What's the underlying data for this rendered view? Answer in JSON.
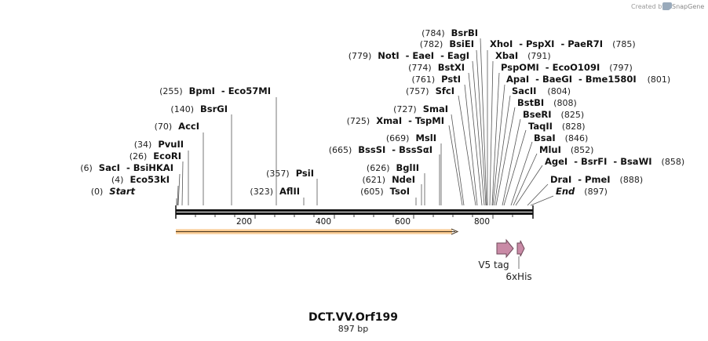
{
  "credit": {
    "text": "Created by",
    "brand": "SnapGene"
  },
  "title": "DCT.VV.Orf199",
  "length_label": "897 bp",
  "axis": {
    "ticks": [
      "200",
      "400",
      "600",
      "800"
    ]
  },
  "sites": [
    {
      "pos": "(0)",
      "name": "Start"
    },
    {
      "pos": "(4)",
      "name": "Eco53kI"
    },
    {
      "pos": "(6)",
      "name": "SacI  - BsiHKAI"
    },
    {
      "pos": "(26)",
      "name": "EcoRI"
    },
    {
      "pos": "(34)",
      "name": "PvuII"
    },
    {
      "pos": "(70)",
      "name": "AccI"
    },
    {
      "pos": "(140)",
      "name": "BsrGI"
    },
    {
      "pos": "(255)",
      "name": "BpmI  - Eco57MI"
    },
    {
      "pos": "(323)",
      "name": "AflII"
    },
    {
      "pos": "(357)",
      "name": "PsiI"
    },
    {
      "pos": "(605)",
      "name": "TsoI"
    },
    {
      "pos": "(621)",
      "name": "NdeI"
    },
    {
      "pos": "(626)",
      "name": "BglII"
    },
    {
      "pos": "(665)",
      "name": "BssSI  - BssSαI"
    },
    {
      "pos": "(669)",
      "name": "MslI"
    },
    {
      "pos": "(725)",
      "name": "XmaI  - TspMI"
    },
    {
      "pos": "(727)",
      "name": "SmaI"
    },
    {
      "pos": "(757)",
      "name": "SfcI"
    },
    {
      "pos": "(761)",
      "name": "PstI"
    },
    {
      "pos": "(774)",
      "name": "BstXI"
    },
    {
      "pos": "(779)",
      "name": "NotI  - EaeI  - EagI"
    },
    {
      "pos": "(782)",
      "name": "BsiEI"
    },
    {
      "pos": "(784)",
      "name": "BsrBI"
    },
    {
      "pos": "(785)",
      "name": "XhoI  - PspXI  - PaeR7I"
    },
    {
      "pos": "(791)",
      "name": "XbaI"
    },
    {
      "pos": "(797)",
      "name": "PspOMI  - EcoO109I"
    },
    {
      "pos": "(801)",
      "name": "ApaI  - BaeGI  - Bme1580I"
    },
    {
      "pos": "(804)",
      "name": "SacII"
    },
    {
      "pos": "(808)",
      "name": "BstBI"
    },
    {
      "pos": "(825)",
      "name": "BseRI"
    },
    {
      "pos": "(828)",
      "name": "TaqII"
    },
    {
      "pos": "(846)",
      "name": "BsaI"
    },
    {
      "pos": "(852)",
      "name": "MluI"
    },
    {
      "pos": "(858)",
      "name": "AgeI  - BsrFI  - BsaWI"
    },
    {
      "pos": "(888)",
      "name": "DraI  - PmeI"
    },
    {
      "pos": "(897)",
      "name": "End"
    }
  ],
  "features": [
    {
      "name": "V5 tag",
      "color": "#c98aa6"
    },
    {
      "name": "6xHis",
      "color": "#c98aa6"
    }
  ],
  "orf_color": "#f2c089"
}
